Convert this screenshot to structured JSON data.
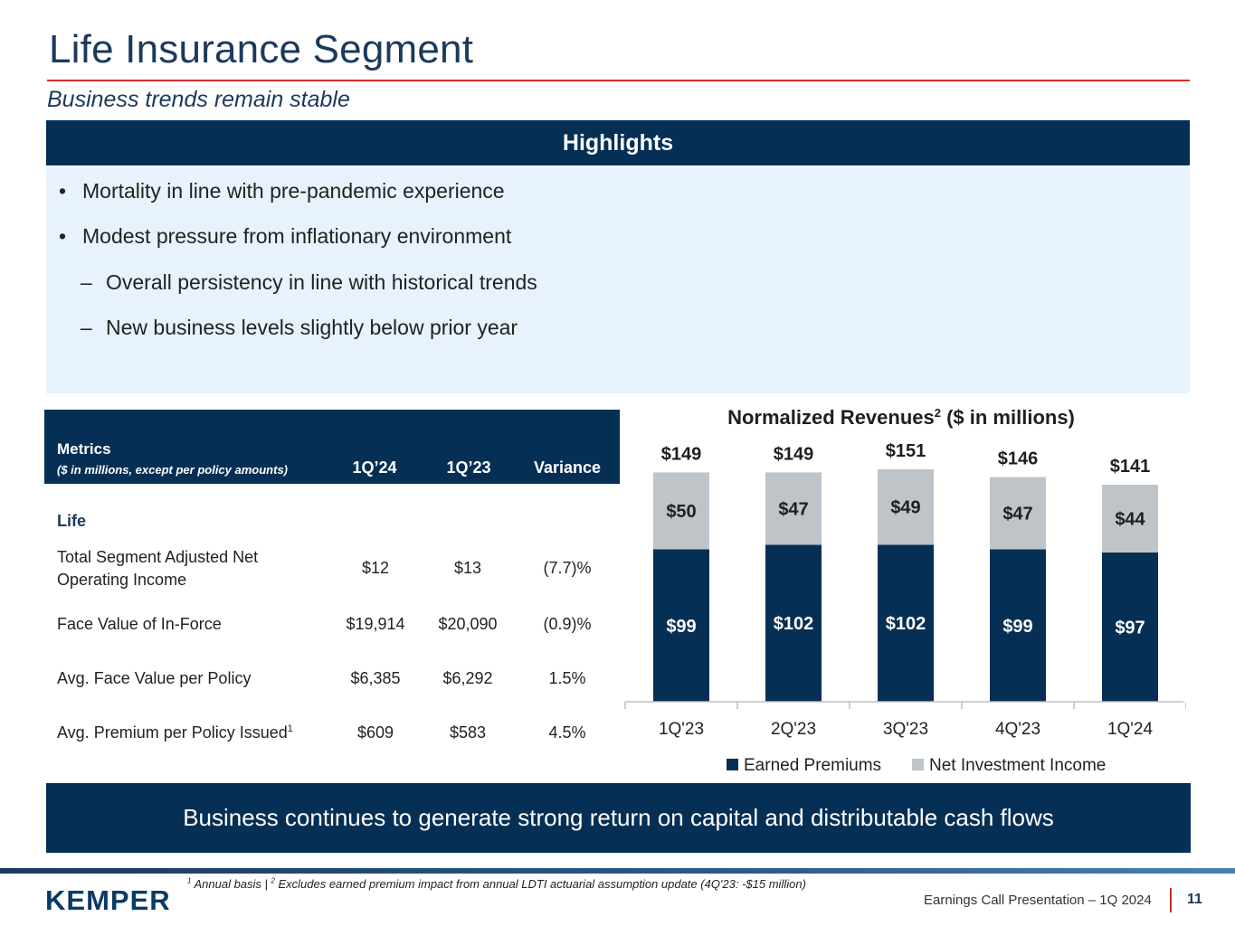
{
  "header": {
    "title": "Life Insurance Segment",
    "subtitle": "Business trends remain stable"
  },
  "highlights": {
    "heading": "Highlights",
    "bullets": [
      "Mortality in line with pre-pandemic experience",
      "Modest pressure from inflationary environment"
    ],
    "sub_bullets": [
      "Overall persistency in line with historical trends",
      "New business levels slightly below prior year"
    ],
    "bullet_mark": "•",
    "sub_mark": "–"
  },
  "metrics": {
    "title": "Metrics",
    "subtitle": "($ in millions, except per policy amounts)",
    "columns": [
      "1Q’24",
      "1Q’23",
      "Variance"
    ],
    "section": "Life",
    "rows": [
      {
        "label_line1": "Total Segment Adjusted Net",
        "label_line2": "Operating Income",
        "q124": "$12",
        "q123": "$13",
        "variance": "(7.7)%"
      },
      {
        "label_line1": "Face Value of In-Force",
        "label_line2": "",
        "q124": "$19,914",
        "q123": "$20,090",
        "variance": "(0.9)%"
      },
      {
        "label_line1": "Avg. Face Value per Policy",
        "label_line2": "",
        "q124": "$6,385",
        "q123": "$6,292",
        "variance": "1.5%"
      },
      {
        "label_line1": "Avg. Premium per Policy Issued",
        "label_sup": "1",
        "label_line2": "",
        "q124": "$609",
        "q123": "$583",
        "variance": "4.5%"
      }
    ]
  },
  "chart_data": {
    "type": "bar",
    "stacked": true,
    "title_main": "Normalized Revenues",
    "title_sup": "2",
    "title_rest": " ($ in millions)",
    "categories": [
      "1Q'23",
      "2Q'23",
      "3Q'23",
      "4Q'23",
      "1Q'24"
    ],
    "series": [
      {
        "name": "Earned Premiums",
        "values": [
          99,
          102,
          102,
          99,
          97
        ],
        "labels": [
          "$99",
          "$102",
          "$102",
          "$99",
          "$97"
        ],
        "color": "#062f55"
      },
      {
        "name": "Net Investment Income",
        "values": [
          50,
          47,
          49,
          47,
          44
        ],
        "labels": [
          "$50",
          "$47",
          "$49",
          "$47",
          "$44"
        ],
        "color": "#bfc4c9"
      }
    ],
    "totals": [
      "$149",
      "$149",
      "$151",
      "$146",
      "$141"
    ],
    "ylim": [
      0,
      151
    ],
    "legend_position": "bottom"
  },
  "banner": {
    "text": "Business continues to generate strong return on capital and distributable cash flows"
  },
  "footer": {
    "logo": "KEMPER",
    "footnote_sup1": "1",
    "footnote_part1": " Annual basis  | ",
    "footnote_sup2": "2",
    "footnote_part2": " Excludes earned premium impact from annual LDTI actuarial assumption update (4Q'23: -$15 million)",
    "presentation": "Earnings Call Presentation – 1Q 2024",
    "page": "11"
  },
  "colors": {
    "navy": "#062f55",
    "gray": "#bfc4c9",
    "accent_red": "#d62c2c",
    "light_blue": "#e7f2fc"
  }
}
